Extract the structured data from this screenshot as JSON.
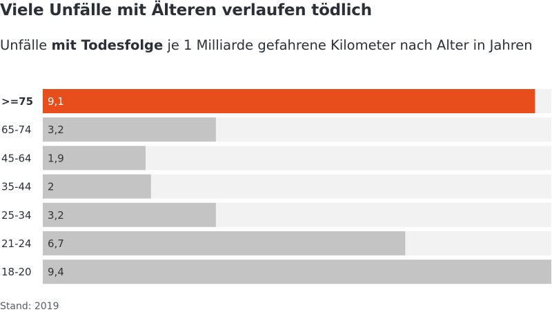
{
  "chart_data": {
    "type": "bar",
    "orientation": "horizontal",
    "title": "Viele Unfälle mit Älteren verlaufen tödlich",
    "subtitle": {
      "before": "Unfälle ",
      "bold": "mit Todesfolge",
      "after": " je 1 Milliarde gefahrene Kilometer nach Alter in Jahren"
    },
    "categories": [
      ">=75",
      "65-74",
      "45-64",
      "35-44",
      "25-34",
      "21-24",
      "18-20"
    ],
    "values": [
      9.1,
      3.2,
      1.9,
      2,
      3.2,
      6.7,
      9.4
    ],
    "value_labels": [
      "9,1",
      "3,2",
      "1,9",
      "2",
      "3,2",
      "6,7",
      "9,4"
    ],
    "highlight_category": ">=75",
    "xlim": [
      0,
      9.4
    ],
    "grid": false,
    "legend": "none",
    "colors": {
      "highlight": "#e84e1b",
      "bar": "#c4c4c4",
      "track": "#f2f2f2",
      "highlight_text": "#ffffff",
      "bar_text": "#333333"
    }
  },
  "footer": "Stand: 2019"
}
